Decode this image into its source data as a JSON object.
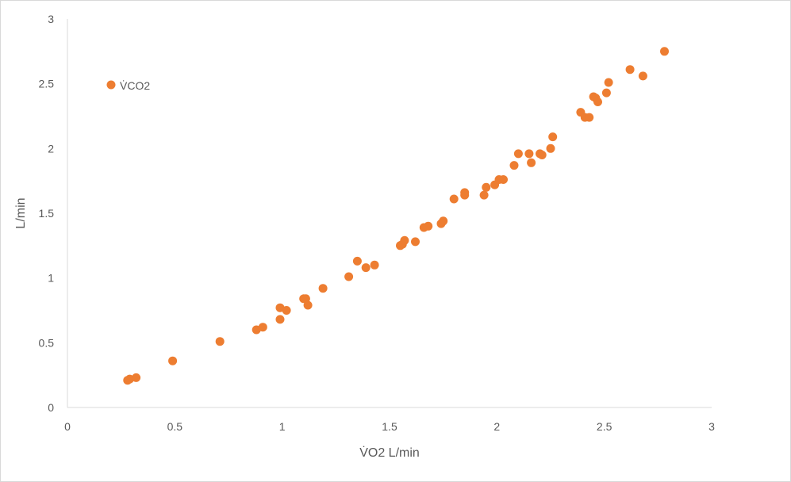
{
  "chart_data": {
    "type": "scatter",
    "xlabel": "V̇O2 L/min",
    "ylabel": "L/min",
    "xlim": [
      0,
      3
    ],
    "ylim": [
      0,
      3
    ],
    "x_ticks": [
      "0",
      "0.5",
      "1",
      "1.5",
      "2",
      "2.5",
      "3"
    ],
    "y_ticks": [
      "0",
      "0.5",
      "1",
      "1.5",
      "2",
      "2.5",
      "3"
    ],
    "legend_position": "top-left",
    "grid": false,
    "series": [
      {
        "name": "V̇CO2",
        "color": "#ED7D31",
        "points": [
          [
            0.28,
            0.21
          ],
          [
            0.29,
            0.22
          ],
          [
            0.32,
            0.23
          ],
          [
            0.49,
            0.36
          ],
          [
            0.71,
            0.51
          ],
          [
            0.88,
            0.6
          ],
          [
            0.91,
            0.62
          ],
          [
            0.99,
            0.68
          ],
          [
            0.99,
            0.77
          ],
          [
            1.02,
            0.75
          ],
          [
            1.1,
            0.84
          ],
          [
            1.11,
            0.84
          ],
          [
            1.12,
            0.79
          ],
          [
            1.19,
            0.92
          ],
          [
            1.31,
            1.01
          ],
          [
            1.35,
            1.13
          ],
          [
            1.39,
            1.08
          ],
          [
            1.43,
            1.1
          ],
          [
            1.55,
            1.25
          ],
          [
            1.56,
            1.26
          ],
          [
            1.57,
            1.29
          ],
          [
            1.62,
            1.28
          ],
          [
            1.66,
            1.39
          ],
          [
            1.68,
            1.4
          ],
          [
            1.74,
            1.42
          ],
          [
            1.75,
            1.44
          ],
          [
            1.8,
            1.61
          ],
          [
            1.85,
            1.64
          ],
          [
            1.85,
            1.66
          ],
          [
            1.94,
            1.64
          ],
          [
            1.95,
            1.7
          ],
          [
            1.99,
            1.72
          ],
          [
            2.01,
            1.76
          ],
          [
            2.03,
            1.76
          ],
          [
            2.08,
            1.87
          ],
          [
            2.1,
            1.96
          ],
          [
            2.15,
            1.96
          ],
          [
            2.16,
            1.89
          ],
          [
            2.2,
            1.96
          ],
          [
            2.21,
            1.95
          ],
          [
            2.25,
            2.0
          ],
          [
            2.26,
            2.09
          ],
          [
            2.39,
            2.28
          ],
          [
            2.41,
            2.24
          ],
          [
            2.43,
            2.24
          ],
          [
            2.45,
            2.4
          ],
          [
            2.46,
            2.39
          ],
          [
            2.47,
            2.36
          ],
          [
            2.51,
            2.43
          ],
          [
            2.52,
            2.51
          ],
          [
            2.62,
            2.61
          ],
          [
            2.68,
            2.56
          ],
          [
            2.78,
            2.75
          ]
        ]
      }
    ]
  }
}
